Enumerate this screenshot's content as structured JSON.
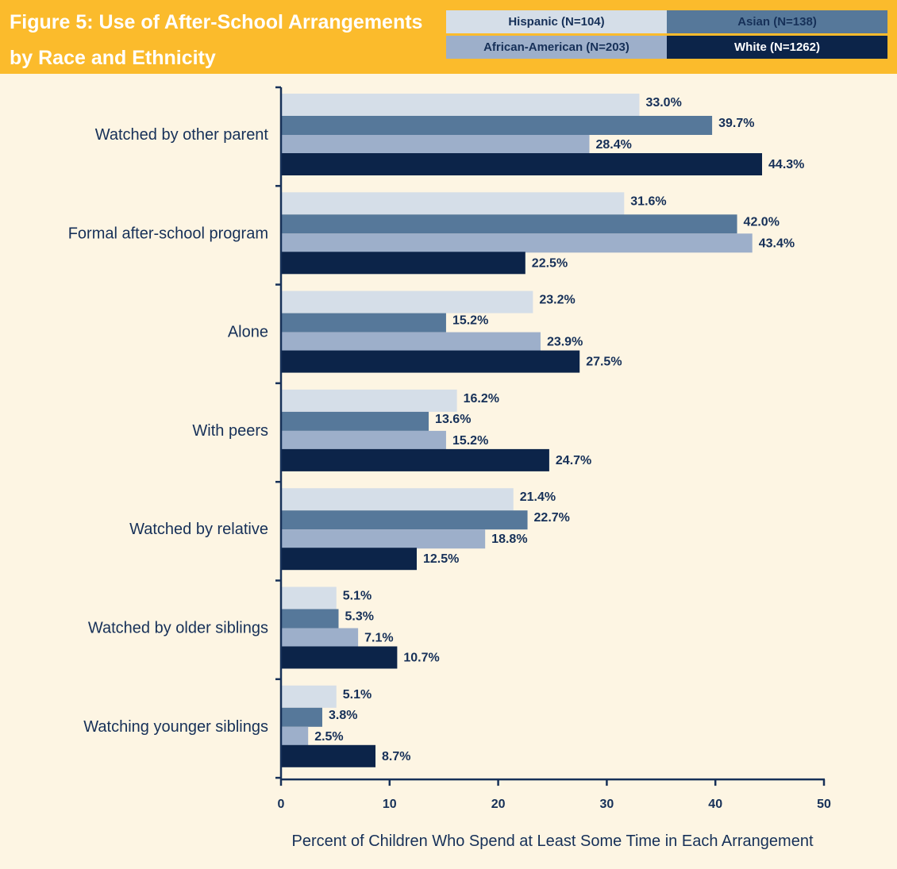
{
  "title": {
    "line1": "Figure 5: Use of After-School Arrangements",
    "line2": "by Race and Ethnicity"
  },
  "colors": {
    "header_bg": "#fbbb2c",
    "plot_bg": "#fdf5e3",
    "axis": "#163058",
    "text": "#163058"
  },
  "legend": [
    {
      "label": "Hispanic (N=104)",
      "color": "#d5dee8",
      "text_color": "#163058"
    },
    {
      "label": "Asian (N=138)",
      "color": "#56789a",
      "text_color": "#163058"
    },
    {
      "label": "African-American (N=203)",
      "color": "#9dafca",
      "text_color": "#163058"
    },
    {
      "label": "White (N=1262)",
      "color": "#0c2449",
      "text_color": "#ffffff"
    }
  ],
  "chart_data": {
    "type": "bar",
    "orientation": "horizontal",
    "categories": [
      "Watched by other parent",
      "Formal after-school program",
      "Alone",
      "With peers",
      "Watched by relative",
      "Watched by older siblings",
      "Watching younger siblings"
    ],
    "series": [
      {
        "name": "Hispanic (N=104)",
        "values": [
          33.0,
          31.6,
          23.2,
          16.2,
          21.4,
          5.1,
          5.1
        ],
        "labels": [
          "33.0%",
          "31.6%",
          "23.2%",
          "16.2%",
          "21.4%",
          "5.1%",
          "5.1%"
        ]
      },
      {
        "name": "Asian (N=138)",
        "values": [
          39.7,
          42.0,
          15.2,
          13.6,
          22.7,
          5.3,
          3.8
        ],
        "labels": [
          "39.7%",
          "42.0%",
          "15.2%",
          "13.6%",
          "22.7%",
          "5.3%",
          "3.8%"
        ]
      },
      {
        "name": "African-American (N=203)",
        "values": [
          28.4,
          43.4,
          23.9,
          15.2,
          18.8,
          7.1,
          2.5
        ],
        "labels": [
          "28.4%",
          "43.4%",
          "23.9%",
          "15.2%",
          "18.8%",
          "7.1%",
          "2.5%"
        ]
      },
      {
        "name": "White (N=1262)",
        "values": [
          44.3,
          22.5,
          27.5,
          24.7,
          12.5,
          10.7,
          8.7
        ],
        "labels": [
          "44.3%",
          "22.5%",
          "27.5%",
          "24.7%",
          "12.5%",
          "10.7%",
          "8.7%"
        ]
      }
    ],
    "xlabel": "Percent of Children Who Spend at Least Some Time in Each Arrangement",
    "xlim": [
      0,
      50
    ],
    "xticks": [
      0,
      10,
      20,
      30,
      40,
      50
    ],
    "xtick_labels": [
      "0",
      "10",
      "20",
      "30",
      "40",
      "50"
    ],
    "grid": false,
    "legend_position": "top-right"
  }
}
